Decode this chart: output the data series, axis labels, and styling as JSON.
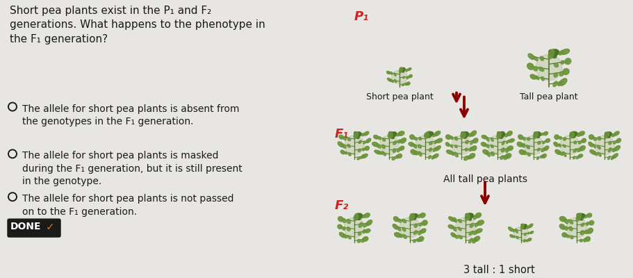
{
  "bg_color": "#e8e6e2",
  "title_text": "Short pea plants exist in the P₁ and F₂\ngenerations. What happens to the phenotype in\nthe F₁ generation?",
  "options": [
    "The allele for short pea plants is absent from\nthe genotypes in the F₁ generation.",
    "The allele for short pea plants is masked\nduring the F₁ generation, but it is still present\nin the genotype.",
    "The allele for short pea plants is not passed\non to the F₁ generation."
  ],
  "done_text": "DONE",
  "done_bg": "#1a1a1a",
  "done_check_color": "#e07020",
  "done_text_color": "#ffffff",
  "p1_label": "P₁",
  "f1_label": "F₁",
  "f2_label": "F₂",
  "short_plant_label": "Short pea plant",
  "tall_plant_label": "Tall pea plant",
  "all_tall_label": "All tall pea plants",
  "ratio_label": "3 tall : 1 short",
  "arrow_color": "#8b0000",
  "text_color": "#1a1a1a",
  "label_color_red": "#cc2222",
  "font_size_title": 11,
  "font_size_option": 10,
  "font_size_label": 9,
  "font_size_gen": 13,
  "font_size_done": 10
}
